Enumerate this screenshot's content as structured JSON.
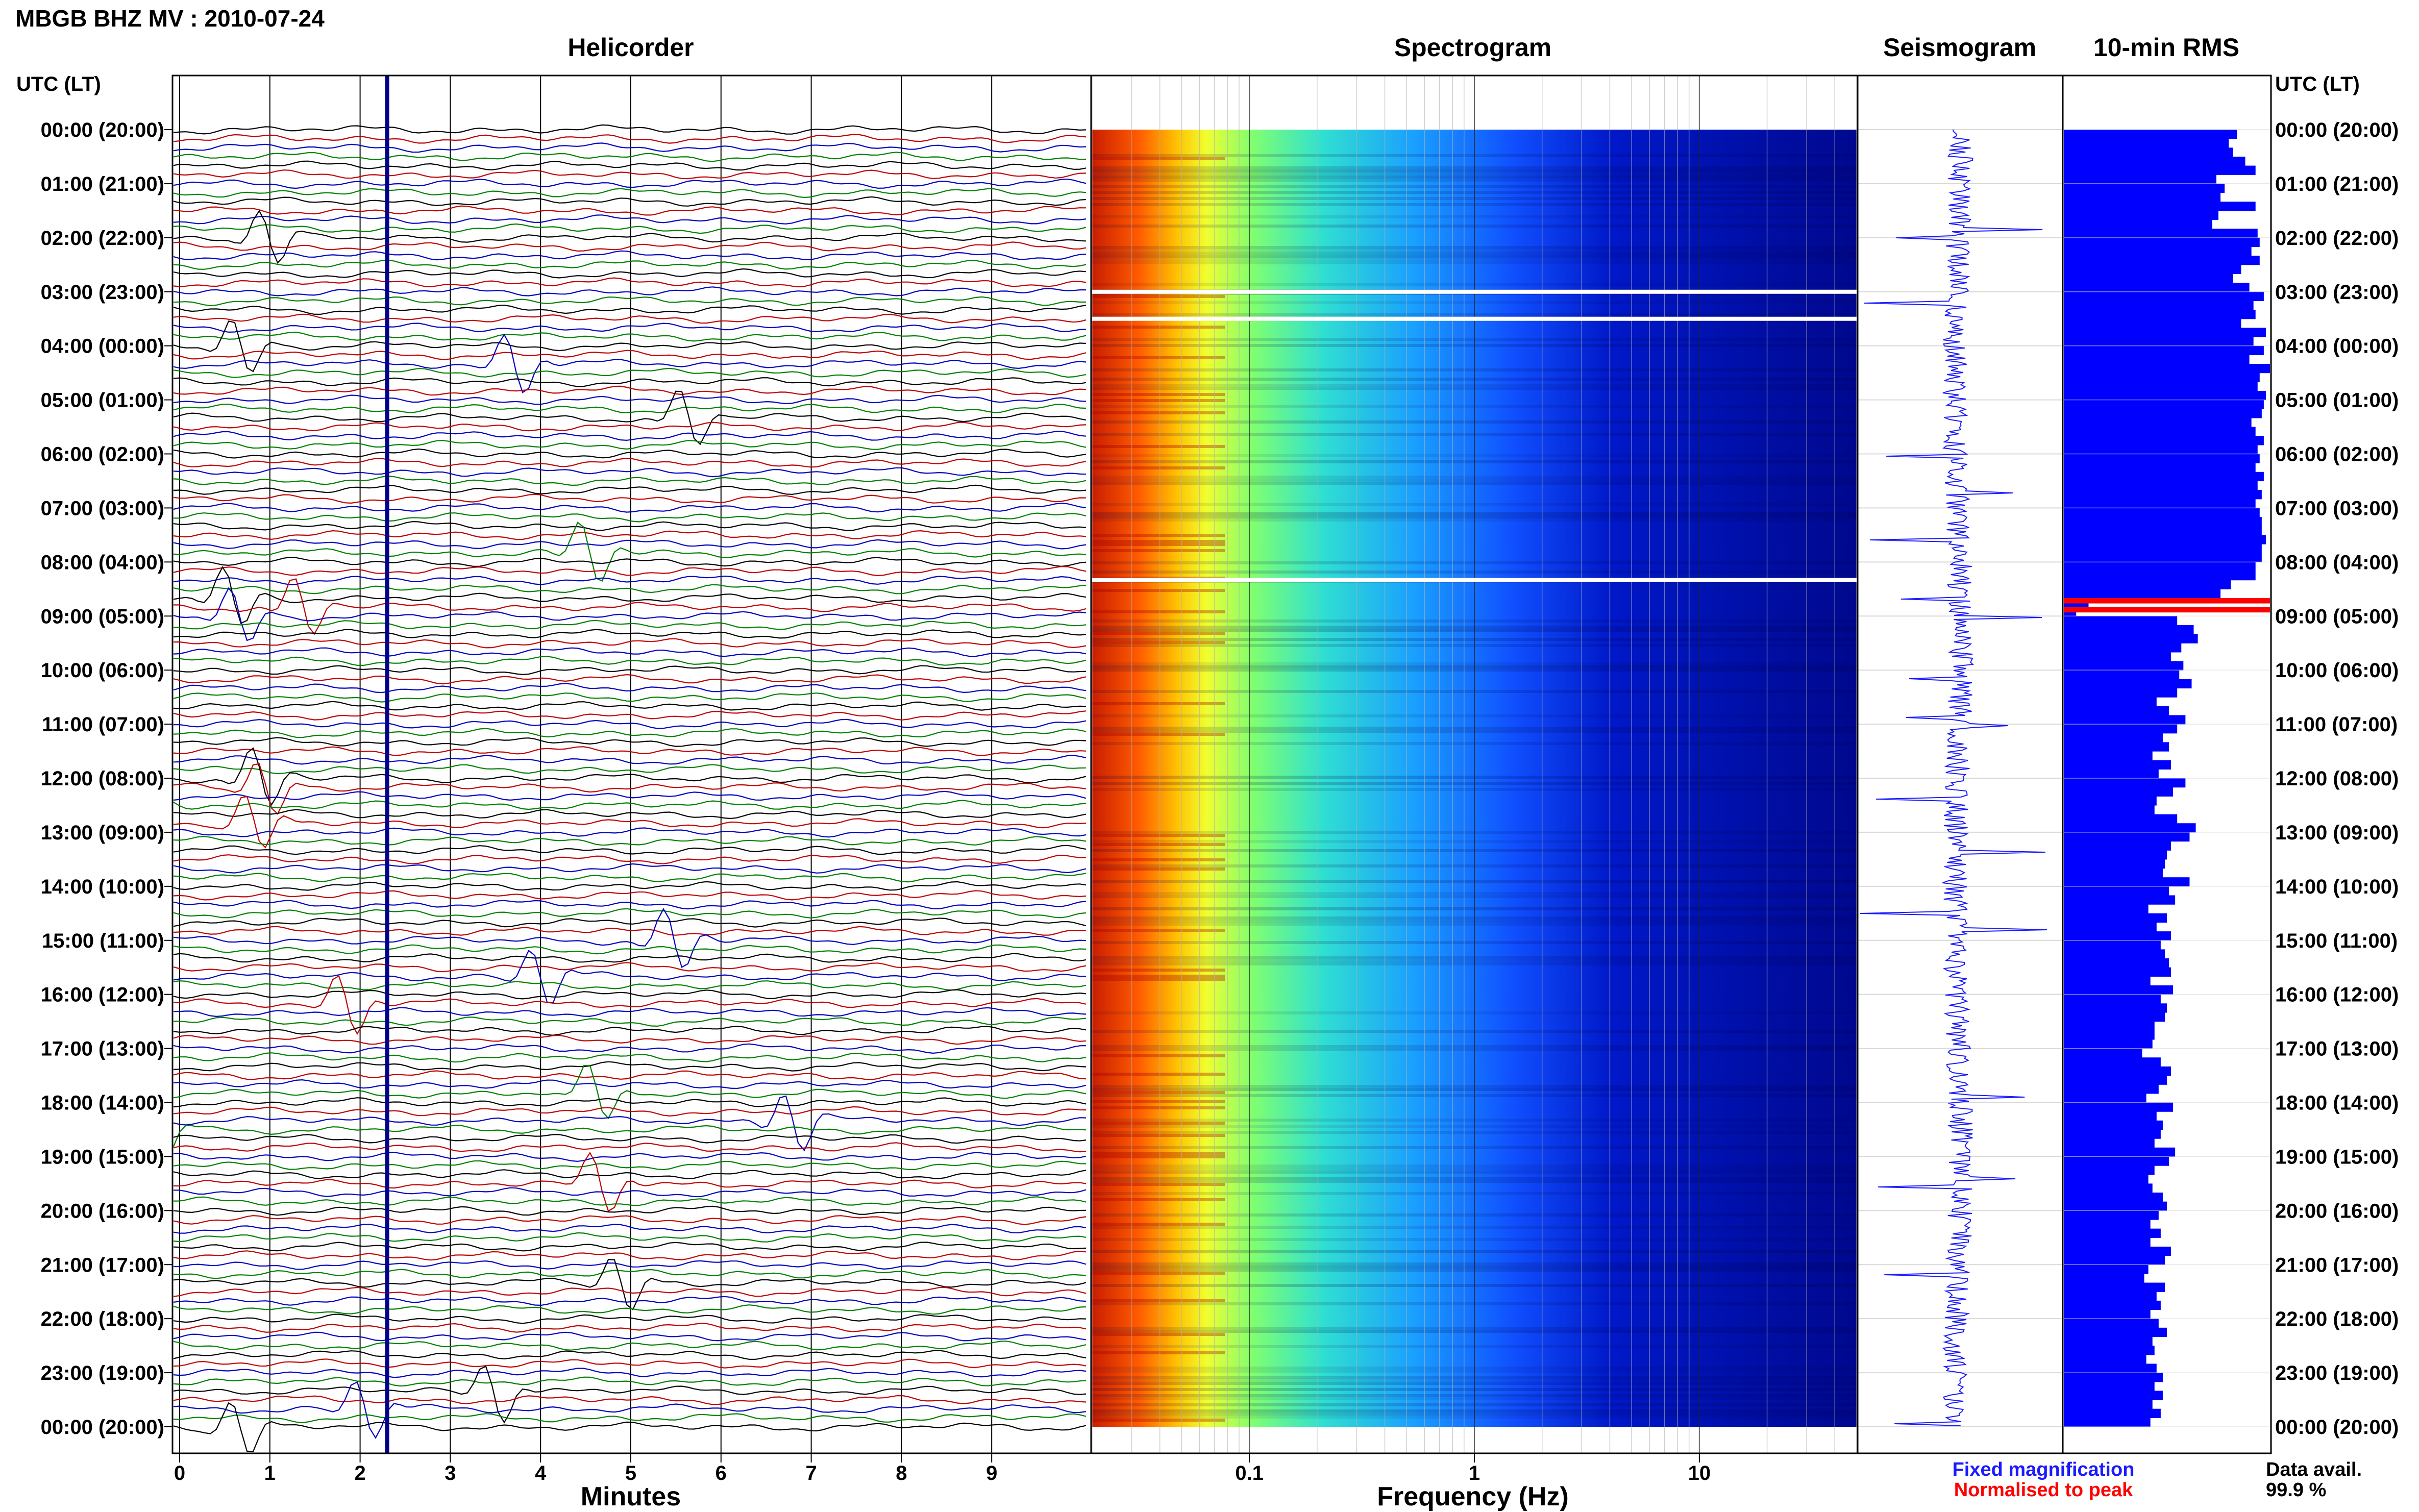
{
  "header": {
    "title": "MBGB BHZ MV : 2010-07-24"
  },
  "panels": {
    "helicorder": "Helicorder",
    "spectrogram": "Spectrogram",
    "seismogram": "Seismogram",
    "rms": "10-min RMS"
  },
  "time_axis": {
    "label": "UTC (LT)",
    "ticks": [
      "00:00 (20:00)",
      "01:00 (21:00)",
      "02:00 (22:00)",
      "03:00 (23:00)",
      "04:00 (00:00)",
      "05:00 (01:00)",
      "06:00 (02:00)",
      "07:00 (03:00)",
      "08:00 (04:00)",
      "09:00 (05:00)",
      "10:00 (06:00)",
      "11:00 (07:00)",
      "12:00 (08:00)",
      "13:00 (09:00)",
      "14:00 (10:00)",
      "15:00 (11:00)",
      "16:00 (12:00)",
      "17:00 (13:00)",
      "18:00 (14:00)",
      "19:00 (15:00)",
      "20:00 (16:00)",
      "21:00 (17:00)",
      "22:00 (18:00)",
      "23:00 (19:00)",
      "00:00 (20:00)"
    ]
  },
  "legend": {
    "fixed": "Fixed magnification",
    "normalised": "Normalised to peak",
    "data_avail_label": "Data avail.",
    "data_avail_value": "99.9 %"
  },
  "colors": {
    "fixed": "#1a1aff",
    "normalised": "#ff0000",
    "rms_bar": "#0000ff",
    "spec_background": "#00008b"
  },
  "chart_data": [
    {
      "type": "line",
      "name": "helicorder",
      "xlabel": "Minutes",
      "xticks": [
        0,
        1,
        2,
        3,
        4,
        5,
        6,
        7,
        8,
        9
      ],
      "xlim": [
        0,
        10
      ],
      "ylim": [
        "00:00",
        "24:00"
      ],
      "traces_per_hour": 6,
      "trace_colors": [
        "#000000",
        "#c00000",
        "#0000c0",
        "#008000"
      ],
      "event_marker_minute": 2.3
    },
    {
      "type": "heatmap",
      "name": "spectrogram",
      "xlabel": "Frequency (Hz)",
      "x_scale": "log",
      "xticks": [
        "0.1",
        "1",
        "10"
      ],
      "xlim": [
        0.02,
        50
      ],
      "gaps_utc": [
        "03:00",
        "03:30",
        "08:20"
      ],
      "colormap": [
        "#8b0000",
        "#ff4500",
        "#ffa500",
        "#ffff00",
        "#7fff00",
        "#00ffff",
        "#1e90ff",
        "#0000cd",
        "#00008b"
      ]
    },
    {
      "type": "line",
      "name": "seismogram",
      "ylim": [
        "00:00",
        "24:00"
      ]
    },
    {
      "type": "bar",
      "name": "rms",
      "orientation": "horizontal",
      "note_values_normalised": true,
      "values": [
        0.84,
        0.8,
        0.82,
        0.88,
        0.93,
        0.74,
        0.78,
        0.76,
        0.93,
        0.75,
        0.72,
        0.94,
        0.95,
        0.91,
        0.95,
        0.86,
        0.82,
        0.9,
        0.97,
        0.92,
        0.93,
        0.86,
        0.98,
        0.92,
        0.97,
        0.9,
        1.0,
        0.95,
        0.94,
        0.98,
        0.97,
        0.96,
        0.91,
        0.93,
        0.97,
        0.94,
        0.95,
        0.93,
        0.97,
        0.94,
        0.96,
        0.93,
        0.95,
        0.96,
        0.96,
        0.98,
        0.96,
        0.96,
        0.93,
        0.93,
        0.81,
        0.76,
        0.12,
        0.06,
        0.55,
        0.63,
        0.65,
        0.57,
        0.52,
        0.58,
        0.56,
        0.62,
        0.55,
        0.45,
        0.51,
        0.59,
        0.55,
        0.48,
        0.51,
        0.43,
        0.52,
        0.46,
        0.59,
        0.53,
        0.45,
        0.44,
        0.55,
        0.64,
        0.61,
        0.52,
        0.5,
        0.49,
        0.48,
        0.61,
        0.51,
        0.54,
        0.41,
        0.5,
        0.45,
        0.52,
        0.47,
        0.49,
        0.51,
        0.52,
        0.42,
        0.53,
        0.47,
        0.5,
        0.49,
        0.44,
        0.44,
        0.43,
        0.38,
        0.47,
        0.52,
        0.5,
        0.46,
        0.4,
        0.53,
        0.45,
        0.48,
        0.47,
        0.44,
        0.54,
        0.51,
        0.44,
        0.41,
        0.43,
        0.48,
        0.5,
        0.46,
        0.42,
        0.47,
        0.42,
        0.52,
        0.49,
        0.41,
        0.39,
        0.49,
        0.45,
        0.47,
        0.42,
        0.46,
        0.5,
        0.43,
        0.44,
        0.4,
        0.45,
        0.48,
        0.44,
        0.48,
        0.43,
        0.47,
        0.42
      ]
    }
  ]
}
